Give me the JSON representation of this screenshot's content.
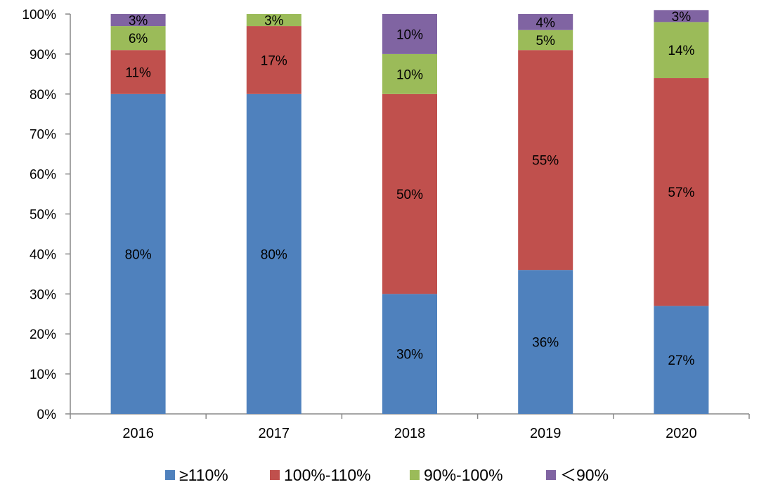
{
  "chart_data": {
    "type": "bar",
    "stacked": true,
    "normalized_percent": true,
    "categories": [
      "2016",
      "2017",
      "2018",
      "2019",
      "2020"
    ],
    "series": [
      {
        "name": "≥110%",
        "color": "#4f81bd",
        "values": [
          80,
          80,
          30,
          36,
          27
        ],
        "labels": [
          "80%",
          "80%",
          "30%",
          "36%",
          "27%"
        ]
      },
      {
        "name": "100%-110%",
        "color": "#c0504d",
        "values": [
          11,
          17,
          50,
          55,
          57
        ],
        "labels": [
          "11%",
          "17%",
          "50%",
          "55%",
          "57%"
        ]
      },
      {
        "name": "90%-100%",
        "color": "#9bbb59",
        "values": [
          6,
          3,
          10,
          5,
          14
        ],
        "labels": [
          "6%",
          "3%",
          "10%",
          "5%",
          "14%"
        ]
      },
      {
        "name": "＜90%",
        "color": "#8064a2",
        "values": [
          3,
          0,
          10,
          4,
          3
        ],
        "labels": [
          "3%",
          "",
          "10%",
          "4%",
          "3%"
        ]
      }
    ],
    "ylim": [
      0,
      100
    ],
    "yticks": [
      "0%",
      "10%",
      "20%",
      "30%",
      "40%",
      "50%",
      "60%",
      "70%",
      "80%",
      "90%",
      "100%"
    ],
    "title": "",
    "xlabel": "",
    "ylabel": "",
    "grid": false,
    "legend_position": "bottom"
  }
}
